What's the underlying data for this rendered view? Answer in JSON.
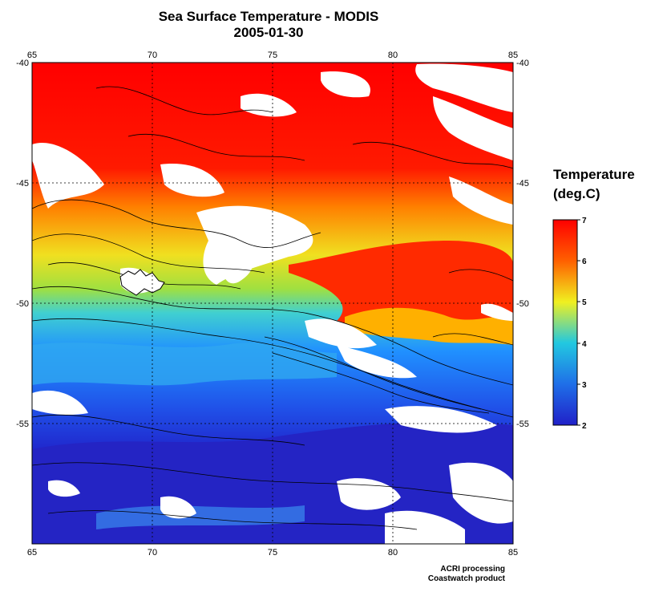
{
  "title": "Sea Surface Temperature - MODIS",
  "date": "2005-01-30",
  "colorbar": {
    "title_line1": "Temperature",
    "title_line2": "(deg.C)",
    "min": 2,
    "max": 7,
    "ticks": [
      "2",
      "3",
      "4",
      "5",
      "6",
      "7"
    ],
    "colors": [
      "#2020c8",
      "#1f6fe8",
      "#22c8e0",
      "#f0f020",
      "#ff8000",
      "#ff0000"
    ]
  },
  "axes": {
    "lon_labels": [
      "65",
      "70",
      "75",
      "80",
      "85"
    ],
    "lat_labels": [
      "-40",
      "-45",
      "-50",
      "-55"
    ]
  },
  "credits": {
    "line1": "ACRI processing",
    "line2": "Coastwatch product"
  },
  "map": {
    "lon_range": [
      65,
      85
    ],
    "lat_range": [
      -60,
      -40
    ],
    "cloud_mask_color": "#ffffff",
    "bathymetry_contour_color": "#000000"
  }
}
